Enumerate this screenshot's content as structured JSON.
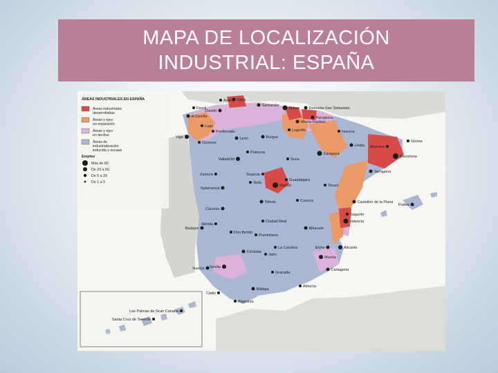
{
  "title": {
    "line1": "MAPA DE LOCALIZACIÓN",
    "line2": "INDUSTRIAL: ESPAÑA"
  },
  "map": {
    "heading": "ÁREAS INDUSTRIALES EN ESPAÑA",
    "legend": {
      "areas": [
        {
          "lines": [
            "Áreas industriales",
            "desarrolladas"
          ],
          "color": "#d84a48"
        },
        {
          "lines": [
            "Áreas y ejes",
            "en expansión"
          ],
          "color": "#e99a66"
        },
        {
          "lines": [
            "Áreas y ejes",
            "en declive"
          ],
          "color": "#dcb2d8"
        },
        {
          "lines": [
            "Áreas de",
            "industrialización",
            "inducida y escasa"
          ],
          "color": "#a9b6d4"
        }
      ],
      "employment_title": "Empleo",
      "employment": [
        "Más de 60",
        "De 20 a 60",
        "De 5 a 20",
        "De 1 a 5"
      ]
    },
    "cities": [
      "Avilés",
      "Gijón",
      "Santander",
      "Bilbao",
      "Donostia-San Sebastián",
      "Oviedo",
      "A Coruña",
      "Lugo",
      "Pamplona",
      "Vitoria-Gasteiz",
      "Ferrol",
      "Logroño",
      "Ourense",
      "Vigo",
      "León",
      "Burgos",
      "Huesca",
      "Lleida",
      "Girona",
      "Manresa",
      "Barcelona",
      "Tarragona",
      "Zaragoza",
      "Palencia",
      "Valladolid",
      "Soria",
      "Zamora",
      "Salamanca",
      "Ávila",
      "Segovia",
      "Guadalajara",
      "Madrid",
      "Teruel",
      "Castellón de la Plana",
      "Sagunto",
      "Valencia",
      "Cuenca",
      "Toledo",
      "Cáceres",
      "Mérida",
      "Badajoz",
      "Ciudad Real",
      "Albacete",
      "Alicante",
      "Elche",
      "Murcia",
      "Cartagena",
      "Córdoba",
      "Jaén",
      "Huelva",
      "Sevilla",
      "Granada",
      "Almería",
      "Cádiz",
      "Málaga",
      "Algeciras",
      "Don Benito",
      "La Carolina",
      "Puertollano",
      "Ponferrada",
      "Palma",
      "Santa Cruz de Tenerife",
      "Las Palmas de Gran Canaria"
    ]
  }
}
